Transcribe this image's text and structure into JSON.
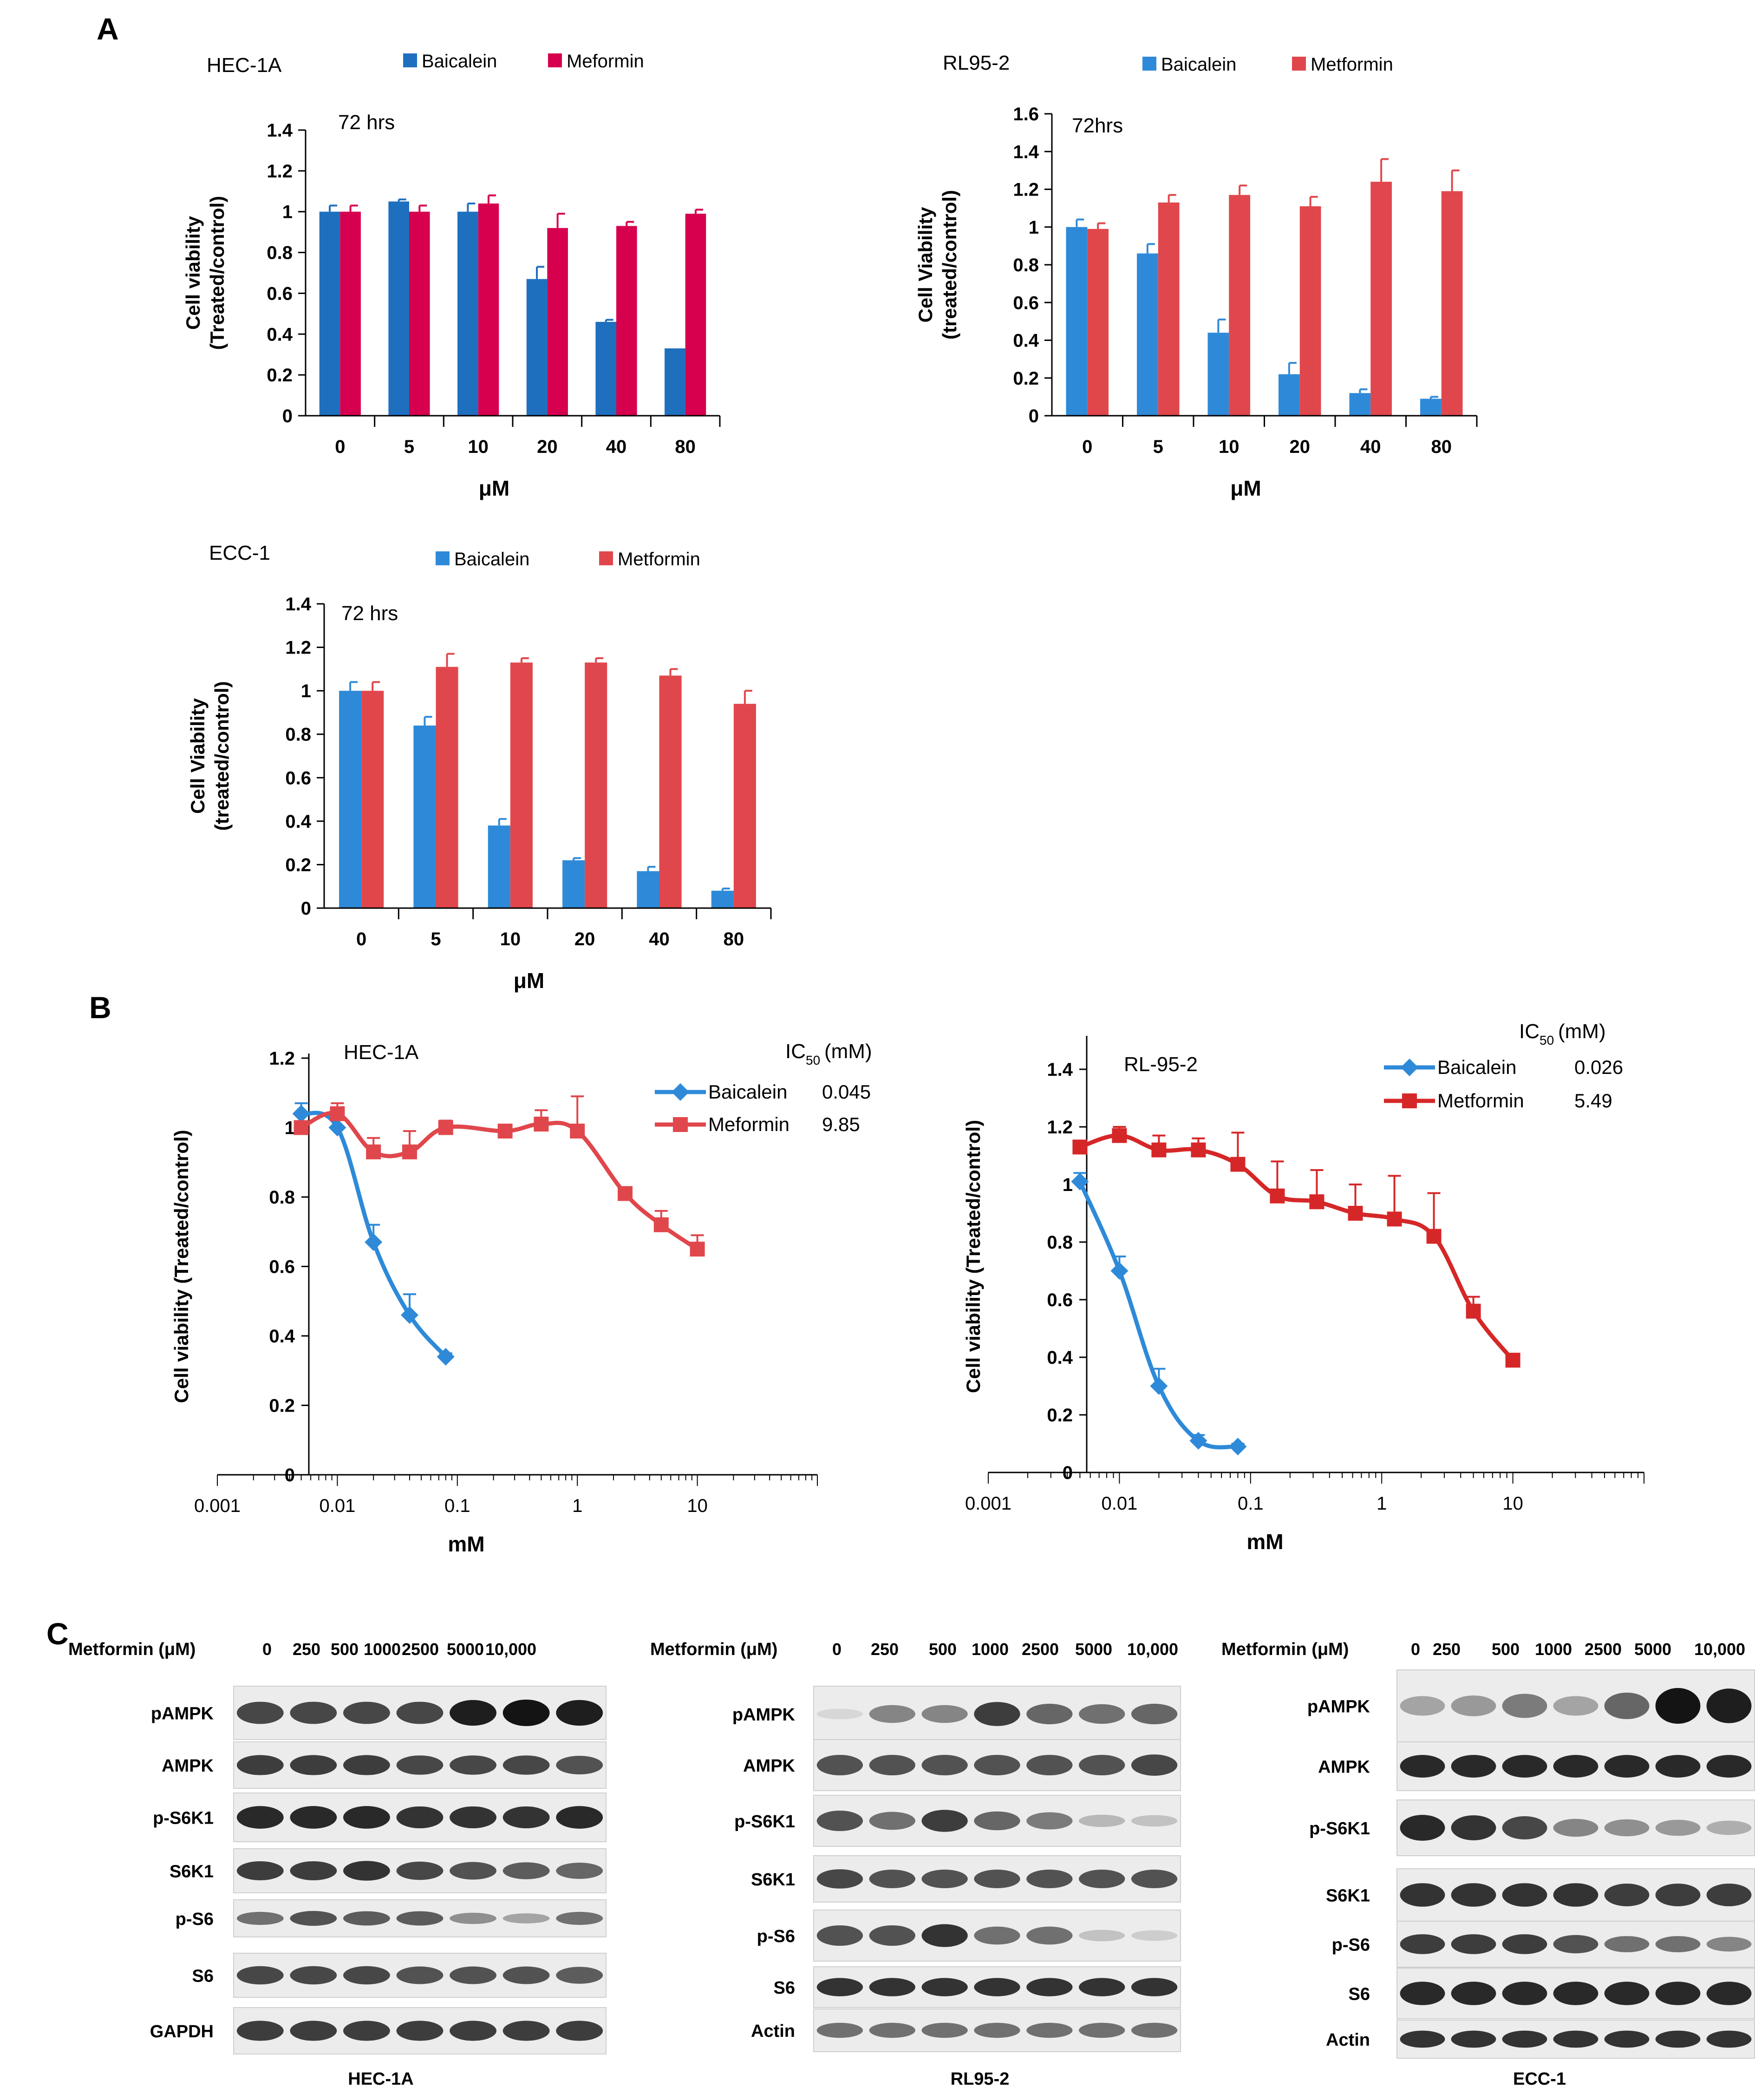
{
  "panels": {
    "A": "A",
    "B": "B",
    "C": "C"
  },
  "chart_data": [
    {
      "id": "a1",
      "type": "bar",
      "title": "HEC-1A",
      "timepoint": "72 hrs",
      "ylabel_line1": "Cell viability",
      "ylabel_line2": "(Treated/control)",
      "xlabel": "μM",
      "categories": [
        "0",
        "5",
        "10",
        "20",
        "40",
        "80"
      ],
      "ylim": [
        0,
        1.4
      ],
      "yticks": [
        0,
        0.2,
        0.4,
        0.6,
        0.8,
        1,
        1.2,
        1.4
      ],
      "ytick_labels": [
        "0",
        "0.2",
        "0.4",
        "0.6",
        "0.8",
        "1",
        "1.2",
        "1.4"
      ],
      "series": [
        {
          "name": "Baicalein",
          "color": "#1f6fbf",
          "values": [
            1.0,
            1.05,
            1.0,
            0.67,
            0.46,
            0.33
          ],
          "errors": [
            0.03,
            0.01,
            0.04,
            0.06,
            0.01,
            0.0
          ]
        },
        {
          "name": "Meformin",
          "color": "#d6004f",
          "values": [
            1.0,
            1.0,
            1.04,
            0.92,
            0.93,
            0.99
          ],
          "errors": [
            0.03,
            0.03,
            0.04,
            0.07,
            0.02,
            0.02
          ]
        }
      ]
    },
    {
      "id": "a2",
      "type": "bar",
      "title": "RL95-2",
      "timepoint": "72hrs",
      "ylabel_line1": "Cell Viability",
      "ylabel_line2": "(treated/control)",
      "xlabel": "μM",
      "categories": [
        "0",
        "5",
        "10",
        "20",
        "40",
        "80"
      ],
      "ylim": [
        0,
        1.6
      ],
      "yticks": [
        0,
        0.2,
        0.4,
        0.6,
        0.8,
        1,
        1.2,
        1.4,
        1.6
      ],
      "ytick_labels": [
        "0",
        "0.2",
        "0.4",
        "0.6",
        "0.8",
        "1",
        "1.2",
        "1.4",
        "1.6"
      ],
      "series": [
        {
          "name": "Baicalein",
          "color": "#2e8ad8",
          "values": [
            1.0,
            0.86,
            0.44,
            0.22,
            0.12,
            0.09
          ],
          "errors": [
            0.04,
            0.05,
            0.07,
            0.06,
            0.02,
            0.01
          ]
        },
        {
          "name": "Metformin",
          "color": "#e0474c",
          "values": [
            0.99,
            1.13,
            1.17,
            1.11,
            1.24,
            1.19
          ],
          "errors": [
            0.03,
            0.04,
            0.05,
            0.05,
            0.12,
            0.11
          ]
        }
      ]
    },
    {
      "id": "a3",
      "type": "bar",
      "title": "ECC-1",
      "timepoint": "72 hrs",
      "ylabel_line1": "Cell Viability",
      "ylabel_line2": "(treated/control)",
      "xlabel": "μM",
      "categories": [
        "0",
        "5",
        "10",
        "20",
        "40",
        "80"
      ],
      "ylim": [
        0,
        1.4
      ],
      "yticks": [
        0,
        0.2,
        0.4,
        0.6,
        0.8,
        1,
        1.2,
        1.4
      ],
      "ytick_labels": [
        "0",
        "0.2",
        "0.4",
        "0.6",
        "0.8",
        "1",
        "1.2",
        "1.4"
      ],
      "series": [
        {
          "name": "Baicalein",
          "color": "#2e8ad8",
          "values": [
            1.0,
            0.84,
            0.38,
            0.22,
            0.17,
            0.08
          ],
          "errors": [
            0.04,
            0.04,
            0.03,
            0.01,
            0.02,
            0.01
          ]
        },
        {
          "name": "Metformin",
          "color": "#e0474c",
          "values": [
            1.0,
            1.11,
            1.13,
            1.13,
            1.07,
            0.94
          ],
          "errors": [
            0.04,
            0.06,
            0.02,
            0.02,
            0.03,
            0.06
          ]
        }
      ]
    },
    {
      "id": "b1",
      "type": "line",
      "title": "HEC-1A",
      "ylabel": "Cell viability (Treated/control)",
      "xlabel": "mM",
      "xscale": "log",
      "xlim": [
        0.001,
        100
      ],
      "xticks": [
        0.001,
        0.01,
        0.1,
        1,
        10
      ],
      "xtick_labels": [
        "0.001",
        "0.01",
        "0.1",
        "1",
        "10"
      ],
      "ylim": [
        0,
        1.2
      ],
      "yticks": [
        0,
        0.2,
        0.4,
        0.6,
        0.8,
        1,
        1.2
      ],
      "ytick_labels": [
        "0",
        "0.2",
        "0.4",
        "0.6",
        "0.8",
        "1",
        "1.2"
      ],
      "ic50_label": "IC",
      "ic50_sub": "50",
      "ic50_unit": "(mM)",
      "series": [
        {
          "name": "Baicalein",
          "color": "#2e8ad8",
          "marker": "diamond",
          "ic50": "0.045",
          "x": [
            0.005,
            0.01,
            0.02,
            0.04,
            0.08
          ],
          "y": [
            1.04,
            1.0,
            0.67,
            0.46,
            0.34
          ],
          "errors": [
            0.03,
            0.03,
            0.05,
            0.06,
            0.01
          ]
        },
        {
          "name": "Meformin",
          "color": "#e0474c",
          "marker": "square",
          "ic50": "9.85",
          "x": [
            0.005,
            0.01,
            0.02,
            0.04,
            0.08,
            0.25,
            0.5,
            1,
            2.5,
            5,
            10
          ],
          "y": [
            1.0,
            1.04,
            0.93,
            0.93,
            1.0,
            0.99,
            1.01,
            0.99,
            0.81,
            0.72,
            0.65
          ],
          "errors": [
            0.0,
            0.03,
            0.04,
            0.06,
            0.02,
            0.0,
            0.04,
            0.1,
            0.01,
            0.04,
            0.04
          ]
        }
      ]
    },
    {
      "id": "b2",
      "type": "line",
      "title": "RL-95-2",
      "ylabel": "Cell viability (Treated/control)",
      "xlabel": "mM",
      "xscale": "log",
      "xlim": [
        0.001,
        100
      ],
      "xticks": [
        0.001,
        0.01,
        0.1,
        1,
        10
      ],
      "xtick_labels": [
        "0.001",
        "0.01",
        "0.1",
        "1",
        "10"
      ],
      "ylim": [
        0,
        1.5
      ],
      "yticks": [
        0,
        0.2,
        0.4,
        0.6,
        0.8,
        1,
        1.2,
        1.4
      ],
      "ytick_labels": [
        "0",
        "0.2",
        "0.4",
        "0.6",
        "0.8",
        "1",
        "1.2",
        "1.4"
      ],
      "ic50_label": "IC",
      "ic50_sub": "50",
      "ic50_unit": "(mM)",
      "series": [
        {
          "name": "Baicalein",
          "color": "#2e8ad8",
          "marker": "diamond",
          "ic50": "0.026",
          "x": [
            0.005,
            0.01,
            0.02,
            0.04,
            0.08
          ],
          "y": [
            1.01,
            0.7,
            0.3,
            0.11,
            0.09
          ],
          "errors": [
            0.03,
            0.05,
            0.06,
            0.02,
            0.01
          ]
        },
        {
          "name": "Metformin",
          "color": "#d62728",
          "marker": "square",
          "ic50": "5.49",
          "x": [
            0.005,
            0.01,
            0.02,
            0.04,
            0.08,
            0.16,
            0.32,
            0.63,
            1.25,
            2.5,
            5,
            10
          ],
          "y": [
            1.13,
            1.17,
            1.12,
            1.12,
            1.07,
            0.96,
            0.94,
            0.9,
            0.88,
            0.82,
            0.56,
            0.39
          ],
          "errors": [
            0.0,
            0.03,
            0.05,
            0.04,
            0.11,
            0.12,
            0.11,
            0.1,
            0.15,
            0.15,
            0.05,
            0.02
          ]
        }
      ]
    }
  ],
  "westerns": [
    {
      "id": "c1",
      "header": "Metformin (μM)",
      "cell_line": "HEC-1A",
      "doses": [
        "0",
        "250",
        "500",
        "1000",
        "2500",
        "5000",
        "10,000"
      ],
      "rows": [
        {
          "label": "pAMPK",
          "intensity": [
            0.75,
            0.75,
            0.75,
            0.75,
            0.95,
            1.0,
            0.95
          ]
        },
        {
          "label": "AMPK",
          "intensity": [
            0.8,
            0.8,
            0.8,
            0.75,
            0.75,
            0.75,
            0.7
          ]
        },
        {
          "label": "p-S6K1",
          "intensity": [
            0.9,
            0.9,
            0.9,
            0.85,
            0.85,
            0.85,
            0.9
          ]
        },
        {
          "label": "S6K1",
          "intensity": [
            0.8,
            0.8,
            0.85,
            0.75,
            0.7,
            0.65,
            0.6
          ]
        },
        {
          "label": "p-S6",
          "intensity": [
            0.55,
            0.7,
            0.65,
            0.65,
            0.4,
            0.3,
            0.55
          ]
        },
        {
          "label": "S6",
          "intensity": [
            0.75,
            0.75,
            0.75,
            0.7,
            0.7,
            0.7,
            0.65
          ]
        },
        {
          "label": "GAPDH",
          "intensity": [
            0.8,
            0.8,
            0.8,
            0.8,
            0.8,
            0.8,
            0.8
          ]
        }
      ]
    },
    {
      "id": "c2",
      "header": "Metformin (μM)",
      "cell_line": "RL95-2",
      "doses": [
        "0",
        "250",
        "500",
        "1000",
        "2500",
        "5000",
        "10,000"
      ],
      "rows": [
        {
          "label": "pAMPK",
          "intensity": [
            0.05,
            0.45,
            0.45,
            0.8,
            0.6,
            0.55,
            0.6
          ]
        },
        {
          "label": "AMPK",
          "intensity": [
            0.7,
            0.7,
            0.7,
            0.7,
            0.7,
            0.7,
            0.75
          ]
        },
        {
          "label": "p-S6K1",
          "intensity": [
            0.7,
            0.55,
            0.8,
            0.6,
            0.5,
            0.2,
            0.15
          ]
        },
        {
          "label": "S6K1",
          "intensity": [
            0.75,
            0.7,
            0.7,
            0.7,
            0.7,
            0.7,
            0.7
          ]
        },
        {
          "label": "p-S6",
          "intensity": [
            0.7,
            0.7,
            0.85,
            0.55,
            0.55,
            0.15,
            0.1
          ]
        },
        {
          "label": "S6",
          "intensity": [
            0.85,
            0.85,
            0.85,
            0.85,
            0.85,
            0.85,
            0.85
          ]
        },
        {
          "label": "Actin",
          "intensity": [
            0.55,
            0.55,
            0.55,
            0.55,
            0.55,
            0.55,
            0.55
          ]
        }
      ]
    },
    {
      "id": "c3",
      "header": "Metformin (μM)",
      "cell_line": "ECC-1",
      "doses": [
        "0",
        "250",
        "500",
        "1000",
        "2500",
        "5000",
        "10,000"
      ],
      "rows": [
        {
          "label": "pAMPK",
          "intensity": [
            0.3,
            0.35,
            0.5,
            0.3,
            0.6,
            1.0,
            0.95
          ]
        },
        {
          "label": "AMPK",
          "intensity": [
            0.9,
            0.9,
            0.9,
            0.9,
            0.9,
            0.9,
            0.9
          ]
        },
        {
          "label": "p-S6K1",
          "intensity": [
            0.9,
            0.85,
            0.75,
            0.45,
            0.4,
            0.35,
            0.25
          ]
        },
        {
          "label": "S6K1",
          "intensity": [
            0.85,
            0.85,
            0.85,
            0.85,
            0.8,
            0.8,
            0.8
          ]
        },
        {
          "label": "p-S6",
          "intensity": [
            0.8,
            0.8,
            0.8,
            0.7,
            0.55,
            0.55,
            0.45
          ]
        },
        {
          "label": "S6",
          "intensity": [
            0.9,
            0.9,
            0.9,
            0.9,
            0.9,
            0.9,
            0.9
          ]
        },
        {
          "label": "Actin",
          "intensity": [
            0.85,
            0.85,
            0.85,
            0.85,
            0.85,
            0.85,
            0.85
          ]
        }
      ]
    }
  ]
}
